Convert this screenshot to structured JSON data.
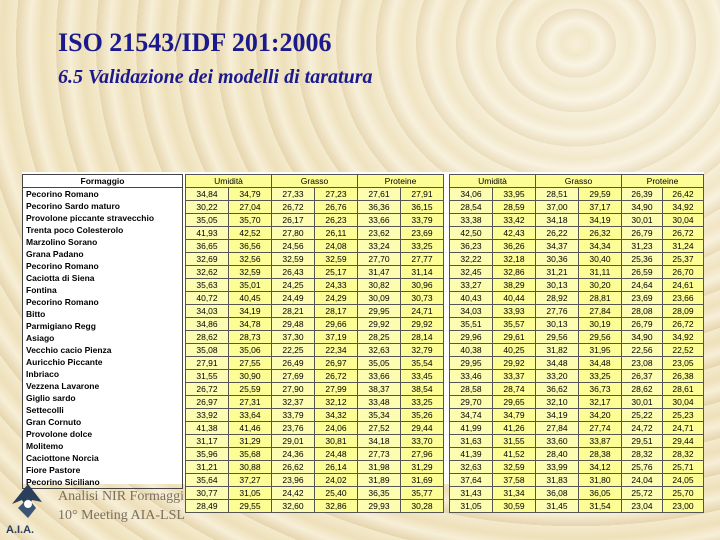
{
  "title": "ISO 21543/IDF 201:2006",
  "subtitle": "6.5 Validazione dei modelli di taratura",
  "footer": {
    "line1": "Analisi NIR Formaggi",
    "line2": "10° Meeting AIA-LSL",
    "logo_text": "A.I.A."
  },
  "table": {
    "name_header": "Formaggio",
    "names": [
      "Pecorino Romano",
      "Pecorino Sardo maturo",
      "Provolone piccante stravecchio",
      "Trenta poco Colesterolo",
      "Marzolino Sorano",
      "Grana Padano",
      "Pecorino Romano",
      "Caciotta di Siena",
      "Fontina",
      "Pecorino Romano",
      "Bitto",
      "Parmigiano Regg",
      "Asiago",
      "Vecchio cacio Pienza",
      "Auricchio Piccante",
      "Inbriaco",
      "Vezzena Lavarone",
      "Giglio sardo",
      "Settecolli",
      "Gran Cornuto",
      "Provolone dolce",
      "Molitemo",
      "Caciottone Norcia",
      "Fiore Pastore",
      "Pecorino Siciliano"
    ],
    "groups": [
      {
        "header": "Umidità",
        "rows": [
          [
            "34,84",
            "34,79"
          ],
          [
            "30,22",
            "27,04"
          ],
          [
            "35,05",
            "35,70"
          ],
          [
            "41,93",
            "42,52"
          ],
          [
            "36,65",
            "36,56"
          ],
          [
            "32,69",
            "32,56"
          ],
          [
            "32,62",
            "32,59"
          ],
          [
            "35,63",
            "35,01"
          ],
          [
            "40,72",
            "40,45"
          ],
          [
            "34,03",
            "34,19"
          ],
          [
            "34,86",
            "34,78"
          ],
          [
            "28,62",
            "28,73"
          ],
          [
            "35,08",
            "35,06"
          ],
          [
            "27,91",
            "27,55"
          ],
          [
            "31,55",
            "30,90"
          ],
          [
            "26,72",
            "25,59"
          ],
          [
            "26,97",
            "27,31"
          ],
          [
            "33,92",
            "33,64"
          ],
          [
            "41,38",
            "41,46"
          ],
          [
            "31,17",
            "31,29"
          ],
          [
            "35,96",
            "35,68"
          ],
          [
            "31,21",
            "30,88"
          ],
          [
            "35,64",
            "37,27"
          ],
          [
            "30,77",
            "31,05"
          ],
          [
            "28,49",
            "29,55"
          ]
        ]
      },
      {
        "header": "Grasso",
        "rows": [
          [
            "27,33",
            "27,23"
          ],
          [
            "26,72",
            "26,76"
          ],
          [
            "26,17",
            "26,23"
          ],
          [
            "27,80",
            "26,11"
          ],
          [
            "24,56",
            "24,08"
          ],
          [
            "32,59",
            "32,59"
          ],
          [
            "26,43",
            "25,17"
          ],
          [
            "24,25",
            "24,33"
          ],
          [
            "24,49",
            "24,29"
          ],
          [
            "28,21",
            "28,17"
          ],
          [
            "29,48",
            "29,66"
          ],
          [
            "37,30",
            "37,19"
          ],
          [
            "22,25",
            "22,34"
          ],
          [
            "26,49",
            "26,97"
          ],
          [
            "27,69",
            "26,72"
          ],
          [
            "27,90",
            "27,99"
          ],
          [
            "32,37",
            "32,12"
          ],
          [
            "33,79",
            "34,32"
          ],
          [
            "23,76",
            "24,06"
          ],
          [
            "29,01",
            "30,81"
          ],
          [
            "24,36",
            "24,48"
          ],
          [
            "26,62",
            "26,14"
          ],
          [
            "23,96",
            "24,02"
          ],
          [
            "24,42",
            "25,40"
          ],
          [
            "32,60",
            "32,86"
          ]
        ]
      },
      {
        "header": "Proteine",
        "rows": [
          [
            "27,61",
            "27,91"
          ],
          [
            "36,36",
            "36,15"
          ],
          [
            "33,66",
            "33,79"
          ],
          [
            "23,62",
            "23,69"
          ],
          [
            "33,24",
            "33,25"
          ],
          [
            "27,70",
            "27,77"
          ],
          [
            "31,47",
            "31,14"
          ],
          [
            "30,82",
            "30,96"
          ],
          [
            "30,09",
            "30,73"
          ],
          [
            "29,95",
            "24,71"
          ],
          [
            "29,92",
            "29,92"
          ],
          [
            "28,25",
            "28,14"
          ],
          [
            "32,63",
            "32,79"
          ],
          [
            "35,05",
            "35,54"
          ],
          [
            "33,66",
            "33,45"
          ],
          [
            "38,37",
            "38,54"
          ],
          [
            "33,48",
            "33,25"
          ],
          [
            "35,34",
            "35,26"
          ],
          [
            "27,52",
            "29,44"
          ],
          [
            "34,18",
            "33,70"
          ],
          [
            "27,73",
            "27,96"
          ],
          [
            "31,98",
            "31,29"
          ],
          [
            "31,89",
            "31,69"
          ],
          [
            "36,35",
            "35,77"
          ],
          [
            "29,93",
            "30,28"
          ]
        ]
      },
      {
        "header": "Umidità",
        "rows": [
          [
            "34,06",
            "33,95"
          ],
          [
            "28,54",
            "28,59"
          ],
          [
            "33,38",
            "33,42"
          ],
          [
            "42,50",
            "42,43"
          ],
          [
            "36,23",
            "36,26"
          ],
          [
            "32,22",
            "32,18"
          ],
          [
            "32,45",
            "32,86"
          ],
          [
            "33,27",
            "38,29"
          ],
          [
            "40,43",
            "40,44"
          ],
          [
            "34,03",
            "33,93"
          ],
          [
            "35,51",
            "35,57"
          ],
          [
            "29,96",
            "29,61"
          ],
          [
            "40,38",
            "40,25"
          ],
          [
            "29,95",
            "29,92"
          ],
          [
            "33,46",
            "33,37"
          ],
          [
            "28,58",
            "28,74"
          ],
          [
            "29,70",
            "29,65"
          ],
          [
            "34,74",
            "34,79"
          ],
          [
            "41,99",
            "41,26"
          ],
          [
            "31,63",
            "31,55"
          ],
          [
            "41,39",
            "41,52"
          ],
          [
            "32,63",
            "32,59"
          ],
          [
            "37,64",
            "37,58"
          ],
          [
            "31,43",
            "31,34"
          ],
          [
            "31,05",
            "30,59"
          ]
        ]
      },
      {
        "header": "Grasso",
        "rows": [
          [
            "28,51",
            "29,59"
          ],
          [
            "37,00",
            "37,17"
          ],
          [
            "34,18",
            "34,19"
          ],
          [
            "26,22",
            "26,32"
          ],
          [
            "34,37",
            "34,34"
          ],
          [
            "30,36",
            "30,40"
          ],
          [
            "31,21",
            "31,11"
          ],
          [
            "30,13",
            "30,20"
          ],
          [
            "28,92",
            "28,81"
          ],
          [
            "27,76",
            "27,84"
          ],
          [
            "30,13",
            "30,19"
          ],
          [
            "29,56",
            "29,56"
          ],
          [
            "31,82",
            "31,95"
          ],
          [
            "34,48",
            "34,48"
          ],
          [
            "33,20",
            "33,25"
          ],
          [
            "36,62",
            "36,73"
          ],
          [
            "32,10",
            "32,17"
          ],
          [
            "34,19",
            "34,20"
          ],
          [
            "27,84",
            "27,74"
          ],
          [
            "33,60",
            "33,87"
          ],
          [
            "28,40",
            "28,38"
          ],
          [
            "33,99",
            "34,12"
          ],
          [
            "31,83",
            "31,80"
          ],
          [
            "36,08",
            "36,05"
          ],
          [
            "31,45",
            "31,54"
          ]
        ]
      },
      {
        "header": "Proteine",
        "rows": [
          [
            "26,39",
            "26,42"
          ],
          [
            "34,90",
            "34,92"
          ],
          [
            "30,01",
            "30,04"
          ],
          [
            "26,79",
            "26,72"
          ],
          [
            "31,23",
            "31,24"
          ],
          [
            "25,36",
            "25,37"
          ],
          [
            "26,59",
            "26,70"
          ],
          [
            "24,64",
            "24,61"
          ],
          [
            "23,69",
            "23,66"
          ],
          [
            "28,08",
            "28,09"
          ],
          [
            "26,79",
            "26,72"
          ],
          [
            "34,90",
            "34,92"
          ],
          [
            "22,56",
            "22,52"
          ],
          [
            "23,08",
            "23,05"
          ],
          [
            "26,37",
            "26,38"
          ],
          [
            "28,62",
            "28,61"
          ],
          [
            "30,01",
            "30,04"
          ],
          [
            "25,22",
            "25,23"
          ],
          [
            "24,72",
            "24,71"
          ],
          [
            "29,51",
            "29,44"
          ],
          [
            "28,32",
            "28,32"
          ],
          [
            "25,76",
            "25,71"
          ],
          [
            "24,04",
            "24,05"
          ],
          [
            "25,72",
            "25,70"
          ],
          [
            "23,04",
            "23,00"
          ]
        ]
      }
    ]
  }
}
